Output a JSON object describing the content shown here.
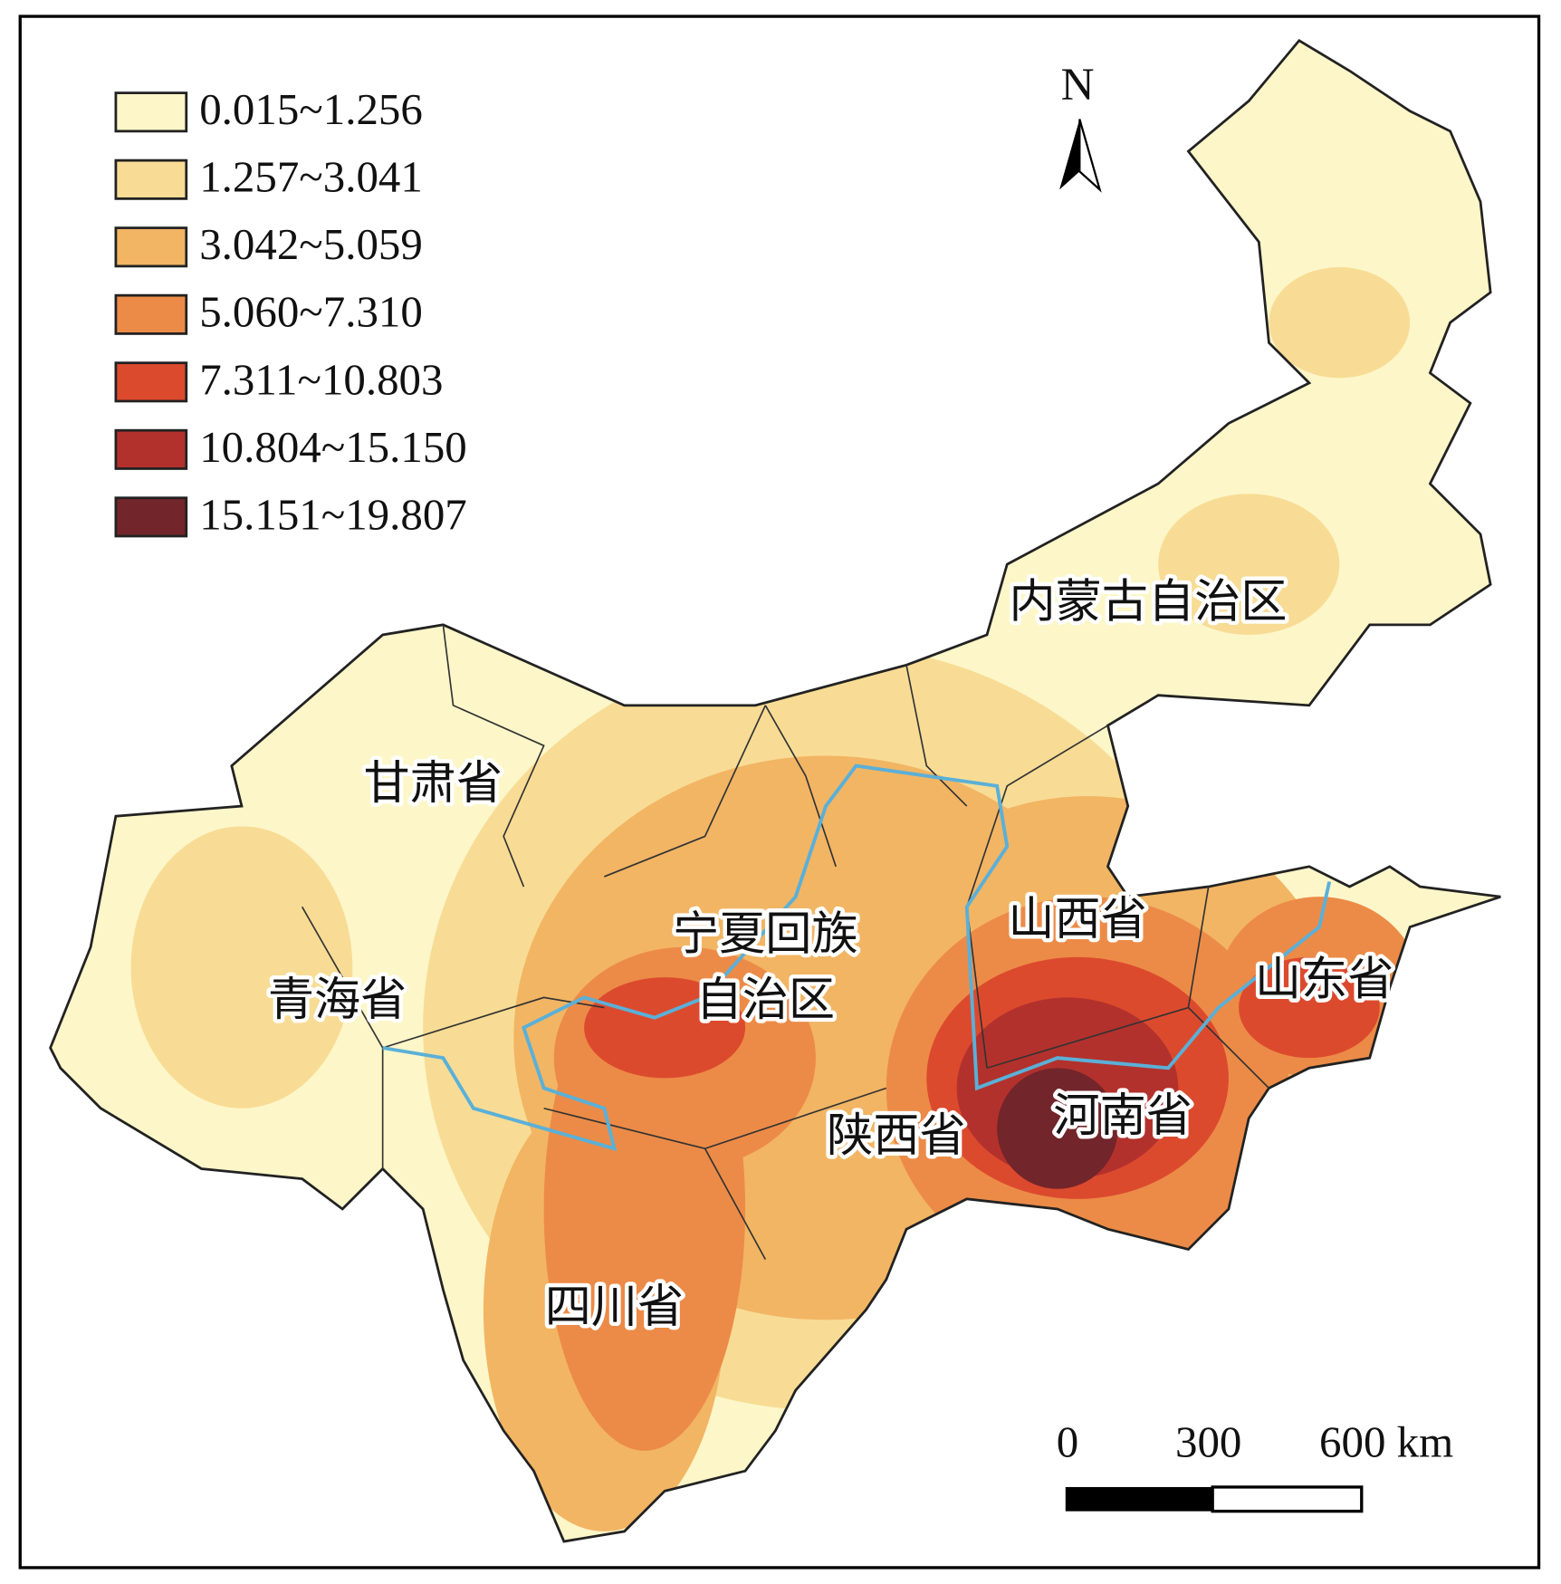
{
  "legend": {
    "items": [
      {
        "label": "0.015~1.256",
        "color": "#fdf6c8"
      },
      {
        "label": "1.257~3.041",
        "color": "#f8dc95"
      },
      {
        "label": "3.042~5.059",
        "color": "#f2b564"
      },
      {
        "label": "5.060~7.310",
        "color": "#ec8b47"
      },
      {
        "label": "7.311~10.803",
        "color": "#dc4a2e"
      },
      {
        "label": "10.804~15.150",
        "color": "#b3312c"
      },
      {
        "label": "15.151~19.807",
        "color": "#72252a"
      }
    ]
  },
  "north_arrow": {
    "label": "N"
  },
  "regions": [
    {
      "lines": [
        "内蒙古自治区"
      ]
    },
    {
      "lines": [
        "甘肃省"
      ]
    },
    {
      "lines": [
        "宁夏回族",
        "自治区"
      ]
    },
    {
      "lines": [
        "山西省"
      ]
    },
    {
      "lines": [
        "山东省"
      ]
    },
    {
      "lines": [
        "青海省"
      ]
    },
    {
      "lines": [
        "陕西省"
      ]
    },
    {
      "lines": [
        "河南省"
      ]
    },
    {
      "lines": [
        "四川省"
      ]
    }
  ],
  "scale_bar": {
    "labels": [
      "0",
      "300",
      "600 km"
    ]
  }
}
